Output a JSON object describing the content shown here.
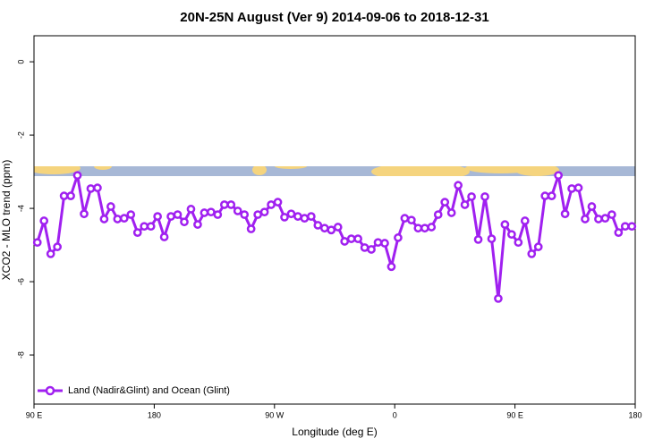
{
  "chart_data": {
    "type": "line",
    "title": "20N-25N August (Ver 9)   2014-09-06 to 2018-12-31",
    "x_label": "Longitude (deg E)",
    "y_label": "XCO2 - MLO trend (ppm)",
    "xlim": [
      90,
      540
    ],
    "ylim": [
      -9.34,
      0.71
    ],
    "xticks": [
      {
        "value": 90,
        "label": "90 E"
      },
      180,
      {
        "value": 270,
        "label": "90 W"
      },
      {
        "value": 360,
        "label": "0"
      },
      {
        "value": 450,
        "label": "90 E"
      },
      {
        "value": 540,
        "label": "180"
      }
    ],
    "yticks": [
      0,
      -2,
      -4,
      -6,
      -8
    ],
    "legend": "lower left",
    "x": [
      92.5,
      97.5,
      102.5,
      107.5,
      112.5,
      117.5,
      122.5,
      127.5,
      132.5,
      137.5,
      142.5,
      147.5,
      152.5,
      157.5,
      162.5,
      167.5,
      172.5,
      177.5,
      182.5,
      187.5,
      192.5,
      197.5,
      202.5,
      207.5,
      212.5,
      217.5,
      222.5,
      227.5,
      232.5,
      237.5,
      242.5,
      247.5,
      252.5,
      257.5,
      262.5,
      267.5,
      272.5,
      277.5,
      282.5,
      287.5,
      292.5,
      297.5,
      302.5,
      307.5,
      312.5,
      317.5,
      322.5,
      327.5,
      332.5,
      337.5,
      342.5,
      347.5,
      352.5,
      357.5,
      362.5,
      367.5,
      372.5,
      377.5,
      382.5,
      387.5,
      392.5,
      397.5,
      402.5,
      407.5,
      412.5,
      417.5,
      422.5,
      427.5,
      432.5,
      437.5,
      442.5,
      447.5,
      452.5,
      457.5,
      462.5,
      467.5,
      472.5,
      477.5,
      482.5,
      487.5,
      492.5,
      497.5,
      502.5,
      507.5,
      512.5,
      517.5,
      522.5,
      527.5,
      532.5,
      537.5
    ],
    "series": [
      {
        "name": "Land (Nadir&Glint) and Ocean (Glint)",
        "color": "#a020f0",
        "values": [
          -4.93,
          -4.34,
          -5.24,
          -5.05,
          -3.66,
          -3.66,
          -3.1,
          -4.15,
          -3.46,
          -3.44,
          -4.29,
          -3.95,
          -4.29,
          -4.27,
          -4.17,
          -4.66,
          -4.49,
          -4.49,
          -4.22,
          -4.78,
          -4.22,
          -4.17,
          -4.37,
          -4.02,
          -4.44,
          -4.12,
          -4.1,
          -4.17,
          -3.9,
          -3.9,
          -4.07,
          -4.17,
          -4.56,
          -4.17,
          -4.1,
          -3.9,
          -3.83,
          -4.24,
          -4.15,
          -4.22,
          -4.27,
          -4.22,
          -4.46,
          -4.54,
          -4.59,
          -4.51,
          -4.9,
          -4.83,
          -4.83,
          -5.07,
          -5.12,
          -4.93,
          -4.95,
          -5.59,
          -4.8,
          -4.27,
          -4.32,
          -4.54,
          -4.54,
          -4.51,
          -4.17,
          -3.83,
          -4.12,
          -3.37,
          -3.9,
          -3.68,
          -4.85,
          -3.68,
          -4.83,
          -6.46,
          -4.44,
          -4.71,
          -4.93,
          -4.34,
          -5.24,
          -5.05,
          -3.66,
          -3.66,
          -3.1,
          -4.15,
          -3.46,
          -3.44,
          -4.29,
          -3.95,
          -4.29,
          -4.27,
          -4.17,
          -4.66,
          -4.49,
          -4.49
        ]
      }
    ]
  }
}
